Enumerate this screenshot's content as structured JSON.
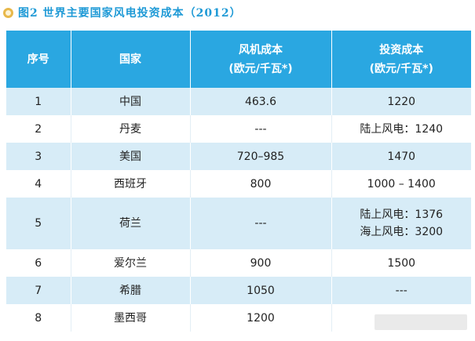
{
  "title": "图2  世界主要国家风电投资成本（2012）",
  "colors": {
    "header_bg": "#2aa7e1",
    "stripe_bg": "#d7ecf7",
    "title_color": "#1f9ad6"
  },
  "table": {
    "headers": {
      "col1": "序号",
      "col2": "国家",
      "col3_line1": "风机成本",
      "col3_line2": "(欧元/千瓦*)",
      "col4_line1": "投资成本",
      "col4_line2": "(欧元/千瓦*)"
    },
    "rows": [
      {
        "no": "1",
        "country": "中国",
        "turbine": "463.6",
        "invest1": "1220",
        "invest2": ""
      },
      {
        "no": "2",
        "country": "丹麦",
        "turbine": "---",
        "invest1": "陆上风电：1240",
        "invest2": ""
      },
      {
        "no": "3",
        "country": "美国",
        "turbine": "720–985",
        "invest1": "1470",
        "invest2": ""
      },
      {
        "no": "4",
        "country": "西班牙",
        "turbine": "800",
        "invest1": "1000 – 1400",
        "invest2": ""
      },
      {
        "no": "5",
        "country": "荷兰",
        "turbine": "---",
        "invest1": "陆上风电：1376",
        "invest2": "海上风电：3200"
      },
      {
        "no": "6",
        "country": "爱尔兰",
        "turbine": "900",
        "invest1": "1500",
        "invest2": ""
      },
      {
        "no": "7",
        "country": "希腊",
        "turbine": "1050",
        "invest1": "---",
        "invest2": ""
      },
      {
        "no": "8",
        "country": "墨西哥",
        "turbine": "1200",
        "invest1": "",
        "invest2": ""
      }
    ]
  }
}
